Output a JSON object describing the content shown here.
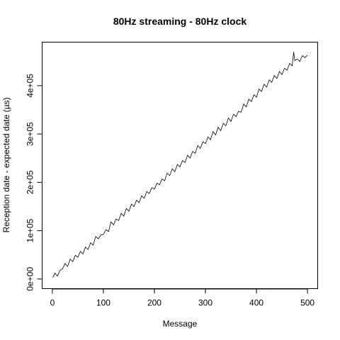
{
  "chart_data": {
    "type": "line",
    "title": "80Hz streaming - 80Hz clock",
    "xlabel": "Message",
    "ylabel": "Reception date - expected date (µs)",
    "xlim": [
      -20,
      520
    ],
    "ylim": [
      -20000,
      490000
    ],
    "x_ticks": [
      0,
      100,
      200,
      300,
      400,
      500
    ],
    "x_tick_labels": [
      "0",
      "100",
      "200",
      "300",
      "400",
      "500"
    ],
    "y_ticks": [
      0,
      100000,
      200000,
      300000,
      400000
    ],
    "y_tick_labels": [
      "0e+00",
      "1e+05",
      "2e+05",
      "3e+05",
      "4e+05"
    ],
    "grid": false,
    "legend": "none",
    "series": [
      {
        "color": "#000000",
        "x": [
          1,
          5,
          10,
          15,
          20,
          25,
          30,
          35,
          40,
          45,
          50,
          55,
          60,
          65,
          70,
          75,
          80,
          85,
          90,
          95,
          100,
          105,
          110,
          115,
          120,
          125,
          130,
          135,
          140,
          145,
          150,
          155,
          160,
          165,
          170,
          175,
          180,
          185,
          190,
          195,
          200,
          205,
          210,
          215,
          220,
          225,
          230,
          235,
          240,
          245,
          250,
          255,
          260,
          265,
          270,
          275,
          280,
          285,
          290,
          295,
          300,
          305,
          310,
          315,
          320,
          325,
          330,
          335,
          340,
          345,
          350,
          355,
          360,
          365,
          370,
          375,
          380,
          385,
          390,
          395,
          400,
          405,
          410,
          415,
          420,
          425,
          430,
          435,
          440,
          445,
          450,
          455,
          460,
          465,
          470,
          473,
          475,
          480,
          485,
          490,
          495,
          500
        ],
        "values": [
          3000,
          12000,
          6000,
          18000,
          21000,
          32000,
          26000,
          41000,
          36000,
          49000,
          45000,
          57000,
          52000,
          66000,
          61000,
          75000,
          70000,
          88000,
          83000,
          91000,
          92000,
          102000,
          98000,
          118000,
          112000,
          124000,
          121000,
          136000,
          130000,
          146000,
          140000,
          155000,
          150000,
          163000,
          158000,
          172000,
          167000,
          181000,
          177000,
          189000,
          186000,
          198000,
          195000,
          207000,
          203000,
          219000,
          214000,
          228000,
          222000,
          237000,
          232000,
          245000,
          241000,
          256000,
          250000,
          264000,
          260000,
          276000,
          270000,
          284000,
          280000,
          294000,
          288000,
          305000,
          298000,
          314000,
          307000,
          322000,
          317000,
          333000,
          326000,
          341000,
          336000,
          347000,
          345000,
          362000,
          356000,
          372000,
          367000,
          381000,
          376000,
          393000,
          388000,
          403000,
          397000,
          412000,
          407000,
          421000,
          415000,
          429000,
          423000,
          436000,
          432000,
          446000,
          441000,
          470000,
          452000,
          455000,
          450000,
          462000,
          458000,
          463000
        ]
      }
    ]
  }
}
